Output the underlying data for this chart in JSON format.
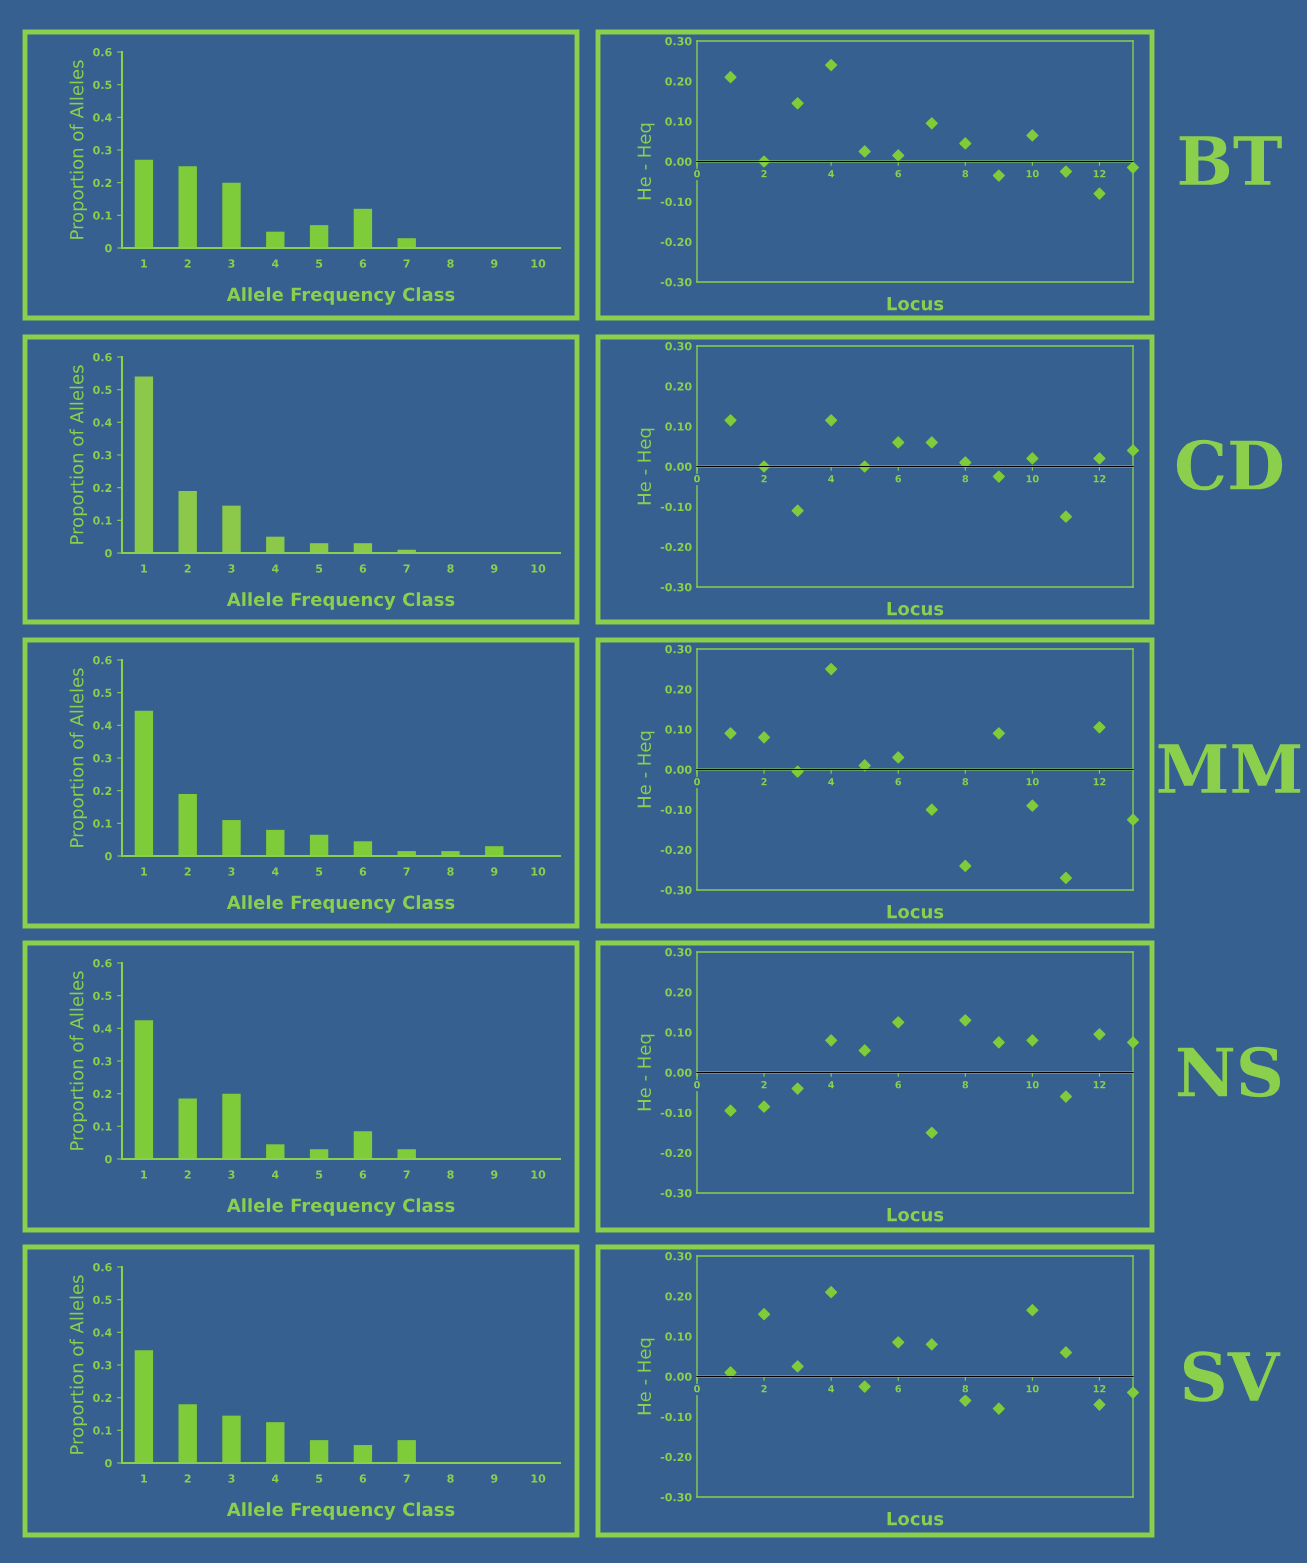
{
  "chart_data": [
    {
      "type": "bar",
      "xlabel": "Allele Frequency Class",
      "ylabel": "Proportion of Alleles",
      "categories": [
        "1",
        "2",
        "3",
        "4",
        "5",
        "6",
        "7",
        "8",
        "9",
        "10"
      ],
      "values": [
        0.27,
        0.25,
        0.2,
        0.05,
        0.07,
        0.12,
        0.03,
        0,
        0,
        0
      ],
      "color": "#7fcc3a",
      "ylim": [
        0,
        0.6
      ],
      "yticks": [
        0,
        0.1,
        0.2,
        0.3,
        0.4,
        0.5,
        0.6
      ]
    },
    {
      "type": "scatter",
      "xlabel": "Locus",
      "ylabel": "He - Heq",
      "x": [
        1,
        2,
        3,
        4,
        5,
        6,
        7,
        8,
        9,
        10,
        11,
        12,
        13
      ],
      "values": [
        0.21,
        0.0,
        0.145,
        0.24,
        0.025,
        0.015,
        0.095,
        0.045,
        -0.035,
        0.065,
        -0.025,
        -0.08,
        -0.015
      ],
      "color": "#7fcc3a",
      "marker": "diamond",
      "xlim": [
        0,
        13
      ],
      "xticks": [
        0,
        2,
        4,
        6,
        8,
        10,
        12
      ],
      "ylim": [
        -0.3,
        0.3
      ],
      "yticks": [
        {
          "value": 0.3,
          "label": "0.30"
        },
        {
          "value": 0.2,
          "label": "0.20"
        },
        {
          "value": 0.1,
          "label": "0.10"
        },
        {
          "value": 0,
          "label": "0.00"
        },
        {
          "value": -0.1,
          "label": "-0.10"
        },
        {
          "value": -0.2,
          "label": "-0.20"
        },
        {
          "value": -0.3,
          "label": "-0.30"
        }
      ],
      "ref_lines": [
        {
          "axis": "y",
          "value": 0
        }
      ],
      "annotations": [
        "BT"
      ]
    },
    {
      "type": "bar",
      "xlabel": "Allele Frequency Class",
      "ylabel": "Proportion of Alleles",
      "categories": [
        "1",
        "2",
        "3",
        "4",
        "5",
        "6",
        "7",
        "8",
        "9",
        "10"
      ],
      "values": [
        0.54,
        0.19,
        0.145,
        0.05,
        0.03,
        0.03,
        0.01,
        0,
        0,
        0
      ],
      "color": "#8cc94a",
      "ylim": [
        0,
        0.6
      ],
      "yticks": [
        0,
        0.1,
        0.2,
        0.3,
        0.4,
        0.5,
        0.6
      ]
    },
    {
      "type": "scatter",
      "xlabel": "Locus",
      "ylabel": "He - Heq",
      "x": [
        1,
        2,
        3,
        4,
        5,
        6,
        7,
        8,
        9,
        10,
        11,
        12,
        13
      ],
      "values": [
        0.115,
        0.0,
        -0.11,
        0.115,
        0.0,
        0.06,
        0.06,
        0.01,
        -0.025,
        0.02,
        -0.125,
        0.02,
        0.04
      ],
      "color": "#7fcc3a",
      "marker": "diamond",
      "xlim": [
        0,
        13
      ],
      "xticks": [
        0,
        2,
        4,
        6,
        8,
        10,
        12
      ],
      "ylim": [
        -0.3,
        0.3
      ],
      "yticks": [
        {
          "value": 0.3,
          "label": "0.30"
        },
        {
          "value": 0.2,
          "label": "0.20"
        },
        {
          "value": 0.1,
          "label": "0.10"
        },
        {
          "value": 0,
          "label": "0.00"
        },
        {
          "value": -0.1,
          "label": "-0.10"
        },
        {
          "value": -0.2,
          "label": "-0.20"
        },
        {
          "value": -0.3,
          "label": "-0.30"
        }
      ],
      "ref_lines": [
        {
          "axis": "y",
          "value": 0
        }
      ],
      "annotations": [
        "CD"
      ]
    },
    {
      "type": "bar",
      "xlabel": "Allele Frequency Class",
      "ylabel": "Proportion of Alleles",
      "categories": [
        "1",
        "2",
        "3",
        "4",
        "5",
        "6",
        "7",
        "8",
        "9",
        "10"
      ],
      "values": [
        0.445,
        0.19,
        0.11,
        0.08,
        0.065,
        0.045,
        0.015,
        0.015,
        0.03,
        0
      ],
      "color": "#7fcc3a",
      "ylim": [
        0,
        0.6
      ],
      "yticks": [
        0,
        0.1,
        0.2,
        0.3,
        0.4,
        0.5,
        0.6
      ]
    },
    {
      "type": "scatter",
      "xlabel": "Locus",
      "ylabel": "He - Heq",
      "x": [
        1,
        2,
        3,
        4,
        5,
        6,
        7,
        8,
        9,
        10,
        11,
        12,
        13
      ],
      "values": [
        0.09,
        0.08,
        -0.005,
        0.25,
        0.01,
        0.03,
        -0.1,
        -0.24,
        0.09,
        -0.09,
        -0.27,
        0.105,
        -0.125
      ],
      "color": "#7fcc3a",
      "marker": "diamond",
      "xlim": [
        0,
        13
      ],
      "xticks": [
        0,
        2,
        4,
        6,
        8,
        10,
        12
      ],
      "ylim": [
        -0.3,
        0.3
      ],
      "yticks": [
        {
          "value": 0.3,
          "label": "0.30"
        },
        {
          "value": 0.2,
          "label": "0.20"
        },
        {
          "value": 0.1,
          "label": "0.10"
        },
        {
          "value": 0,
          "label": "0.00"
        },
        {
          "value": -0.1,
          "label": "-0.10"
        },
        {
          "value": -0.2,
          "label": "-0.20"
        },
        {
          "value": -0.3,
          "label": "-0.30"
        }
      ],
      "ref_lines": [
        {
          "axis": "y",
          "value": 0
        }
      ],
      "annotations": [
        "MM"
      ]
    },
    {
      "type": "bar",
      "xlabel": "Allele Frequency Class",
      "ylabel": "Proportion of Alleles",
      "categories": [
        "1",
        "2",
        "3",
        "4",
        "5",
        "6",
        "7",
        "8",
        "9",
        "10"
      ],
      "values": [
        0.425,
        0.185,
        0.2,
        0.045,
        0.03,
        0.085,
        0.03,
        0,
        0,
        0
      ],
      "color": "#7fcc3a",
      "ylim": [
        0,
        0.6
      ],
      "yticks": [
        0,
        0.1,
        0.2,
        0.3,
        0.4,
        0.5,
        0.6
      ]
    },
    {
      "type": "scatter",
      "xlabel": "Locus",
      "ylabel": "He - Heq",
      "x": [
        1,
        2,
        3,
        4,
        5,
        6,
        7,
        8,
        9,
        10,
        11,
        12,
        13
      ],
      "values": [
        -0.095,
        -0.085,
        -0.04,
        0.08,
        0.055,
        0.125,
        -0.15,
        0.13,
        0.075,
        0.08,
        -0.06,
        0.095,
        0.075
      ],
      "color": "#7fcc3a",
      "marker": "diamond",
      "xlim": [
        0,
        13
      ],
      "xticks": [
        0,
        2,
        4,
        6,
        8,
        10,
        12
      ],
      "ylim": [
        -0.3,
        0.3
      ],
      "yticks": [
        {
          "value": 0.3,
          "label": "0.30"
        },
        {
          "value": 0.2,
          "label": "0.20"
        },
        {
          "value": 0.1,
          "label": "0.10"
        },
        {
          "value": 0,
          "label": "0.00"
        },
        {
          "value": -0.1,
          "label": "-0.10"
        },
        {
          "value": -0.2,
          "label": "-0.20"
        },
        {
          "value": -0.3,
          "label": "-0.30"
        }
      ],
      "ref_lines": [
        {
          "axis": "y",
          "value": 0
        }
      ],
      "annotations": [
        "NS"
      ]
    },
    {
      "type": "bar",
      "xlabel": "Allele Frequency Class",
      "ylabel": "Proportion of Alleles",
      "categories": [
        "1",
        "2",
        "3",
        "4",
        "5",
        "6",
        "7",
        "8",
        "9",
        "10"
      ],
      "values": [
        0.345,
        0.18,
        0.145,
        0.125,
        0.07,
        0.055,
        0.07,
        0,
        0,
        0
      ],
      "color": "#7fcc3a",
      "ylim": [
        0,
        0.6
      ],
      "yticks": [
        0,
        0.1,
        0.2,
        0.3,
        0.4,
        0.5,
        0.6
      ]
    },
    {
      "type": "scatter",
      "xlabel": "Locus",
      "ylabel": "He - Heq",
      "x": [
        1,
        2,
        3,
        4,
        5,
        6,
        7,
        8,
        9,
        10,
        11,
        12,
        13
      ],
      "values": [
        0.01,
        0.155,
        0.025,
        0.21,
        -0.025,
        0.085,
        0.08,
        -0.06,
        -0.08,
        0.165,
        0.06,
        -0.07,
        -0.04
      ],
      "color": "#7fcc3a",
      "marker": "diamond",
      "xlim": [
        0,
        13
      ],
      "xticks": [
        0,
        2,
        4,
        6,
        8,
        10,
        12
      ],
      "ylim": [
        -0.3,
        0.3
      ],
      "yticks": [
        {
          "value": 0.3,
          "label": "0.30"
        },
        {
          "value": 0.2,
          "label": "0.20"
        },
        {
          "value": 0.1,
          "label": "0.10"
        },
        {
          "value": 0,
          "label": "0.00"
        },
        {
          "value": -0.1,
          "label": "-0.10"
        },
        {
          "value": -0.2,
          "label": "-0.20"
        },
        {
          "value": -0.3,
          "label": "-0.30"
        }
      ],
      "ref_lines": [
        {
          "axis": "y",
          "value": 0
        }
      ],
      "annotations": [
        "SV"
      ]
    }
  ]
}
